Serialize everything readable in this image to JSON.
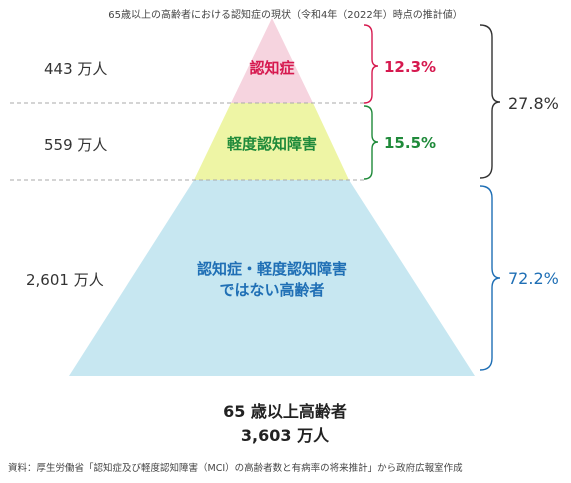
{
  "header": "65歳以上の高齢者における認知症の現状（令和4年（2022年）時点の推計値）",
  "tiers": [
    {
      "count": "443 万人",
      "label": "認知症",
      "percent": "12.3%",
      "color": "#d6194f",
      "fill": "#f6d4df"
    },
    {
      "count": "559 万人",
      "label": "軽度認知障害",
      "percent": "15.5%",
      "color": "#1f8a3a",
      "fill": "#eef5a5"
    },
    {
      "count": "2,601 万人",
      "label_lines": [
        "認知症・軽度認知障害",
        "ではない高齢者"
      ],
      "percent": "72.2%",
      "color": "#1f6fb5",
      "fill": "#c7e7f1"
    }
  ],
  "combined": {
    "percent": "27.8%",
    "color": "#333333"
  },
  "total": {
    "line1": "65 歳以上高齢者",
    "line2": "3,603 万人"
  },
  "source": "資料：厚生労働省「認知症及び軽度認知障害（MCI）の高齢者数と有病率の将来推計」から政府広報室作成"
}
